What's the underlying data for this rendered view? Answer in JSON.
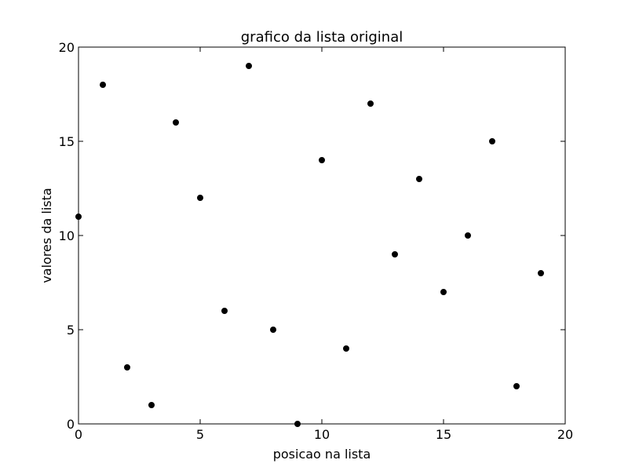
{
  "chart_data": {
    "type": "scatter",
    "title": "grafico da lista original",
    "xlabel": "posicao na lista",
    "ylabel": "valores da lista",
    "xlim": [
      0,
      20
    ],
    "ylim": [
      0,
      20
    ],
    "xticks": [
      0,
      5,
      10,
      15,
      20
    ],
    "yticks": [
      0,
      5,
      10,
      15,
      20
    ],
    "grid": false,
    "marker_color": "#000000",
    "series": [
      {
        "x": [
          0,
          1,
          2,
          3,
          4,
          5,
          6,
          7,
          8,
          9,
          10,
          11,
          12,
          13,
          14,
          15,
          16,
          17,
          18,
          19
        ],
        "y": [
          11,
          18,
          3,
          1,
          16,
          12,
          6,
          19,
          5,
          0,
          14,
          4,
          17,
          9,
          13,
          7,
          10,
          15,
          2,
          8
        ]
      }
    ]
  }
}
